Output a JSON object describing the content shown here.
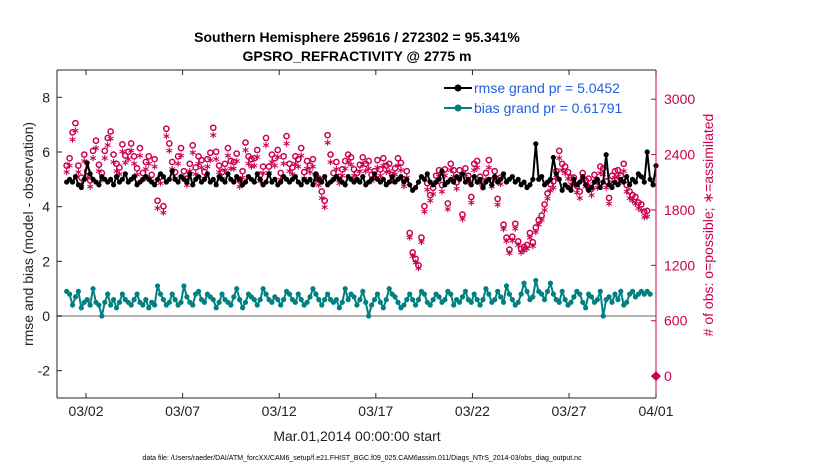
{
  "chart_data": {
    "type": "line",
    "title": "Southern Hemisphere 259616 / 272302 = 95.341%",
    "subtitle": "GPSRO_REFRACTIVITY @ 2775 m",
    "xlabel": "Mar.01,2014 00:00:00 start",
    "ylabel": "rmse and bias (model - observation)",
    "y2label": "# of obs: o=possible; ∗=assimilated",
    "footer": "data file: /Users/raeder/DAI/ATM_forcXX/CAM6_setup/f.e21.FHIST_BGC.f09_025.CAM6assim.011/Diags_NTrS_2014-03/obs_diag_output.nc",
    "xlim": [
      0.5,
      31.5
    ],
    "ylim": [
      -3,
      9
    ],
    "y2lim": [
      -237,
      3316
    ],
    "x_ticks": [
      {
        "label": "03/02",
        "x": 2
      },
      {
        "label": "03/07",
        "x": 7
      },
      {
        "label": "03/12",
        "x": 12
      },
      {
        "label": "03/17",
        "x": 17
      },
      {
        "label": "03/22",
        "x": 22
      },
      {
        "label": "03/27",
        "x": 27
      },
      {
        "label": "04/01",
        "x": 32
      }
    ],
    "y_ticks": [
      "-2",
      "0",
      "2",
      "4",
      "6",
      "8"
    ],
    "y2_ticks": [
      "0",
      "600",
      "1200",
      "1800",
      "2400",
      "3000"
    ],
    "legend_position": "top-right",
    "colors": {
      "rmse": "#000000",
      "bias": "#008080",
      "obs": "#cc0052",
      "zero_line": "#b3b3b3"
    },
    "series": [
      {
        "name": "rmse grand pr = 5.0452",
        "marker": "filled-circle",
        "values": [
          4.9,
          5.0,
          4.9,
          5.1,
          4.8,
          4.7,
          5.0,
          5.6,
          5.2,
          5.0,
          4.9,
          4.8,
          5.1,
          5.0,
          4.9,
          5.0,
          4.8,
          5.1,
          4.9,
          5.0,
          5.2,
          4.9,
          5.0,
          5.1,
          4.8,
          4.9,
          5.0,
          5.1,
          5.0,
          4.9,
          4.8,
          5.0,
          5.2,
          5.1,
          4.9,
          5.0,
          5.3,
          5.0,
          4.9,
          5.1,
          5.0,
          4.9,
          5.2,
          4.8,
          5.0,
          5.1,
          4.9,
          5.0,
          5.2,
          4.9,
          5.0,
          4.8,
          5.1,
          5.0,
          4.9,
          5.2,
          5.0,
          4.9,
          5.1,
          5.0,
          4.8,
          4.9,
          5.1,
          5.0,
          4.9,
          5.2,
          5.0,
          4.8,
          4.9,
          5.2,
          4.9,
          5.0,
          4.8,
          4.9,
          5.1,
          5.0,
          4.9,
          5.0,
          5.1,
          4.9,
          4.8,
          5.0,
          4.9,
          5.0,
          4.8,
          5.2,
          5.0,
          4.9,
          5.1,
          4.8,
          4.9,
          5.0,
          5.1,
          5.0,
          4.9,
          4.8,
          5.1,
          5.0,
          4.9,
          5.0,
          4.9,
          5.1,
          4.8,
          4.9,
          5.0,
          5.2,
          5.0,
          4.9,
          5.0,
          4.8,
          4.9,
          5.1,
          4.9,
          5.0,
          5.1,
          4.9,
          5.0,
          4.8,
          4.6,
          4.7,
          4.9,
          5.1,
          5.0,
          5.2,
          4.9,
          4.8,
          4.9,
          5.0,
          5.3,
          4.8,
          4.9,
          5.0,
          4.9,
          5.1,
          5.0,
          5.2,
          4.9,
          5.0,
          4.8,
          5.1,
          4.9,
          5.0,
          4.7,
          4.9,
          5.0,
          4.8,
          5.1,
          4.9,
          5.0,
          5.2,
          4.9,
          5.0,
          5.1,
          4.9,
          5.0,
          4.8,
          4.9,
          4.7,
          4.8,
          5.0,
          6.3,
          5.0,
          5.1,
          4.8,
          4.9,
          5.0,
          5.8,
          5.2,
          5.0,
          4.6,
          4.8,
          4.7,
          4.6,
          5.0,
          4.8,
          4.9,
          5.1,
          4.8,
          4.6,
          4.7,
          4.9,
          5.0,
          4.7,
          4.9,
          5.9,
          4.8,
          4.7,
          4.9,
          4.8,
          5.0,
          4.9,
          5.1,
          4.8,
          5.0,
          4.9,
          5.2,
          5.1,
          4.9,
          6.0,
          5.0,
          4.8,
          5.5
        ]
      },
      {
        "name": "bias grand pr = 0.61791",
        "marker": "filled-circle",
        "values": [
          0.9,
          0.8,
          0.4,
          0.7,
          0.9,
          0.3,
          0.5,
          0.6,
          0.4,
          1.0,
          0.5,
          0.4,
          0.0,
          0.5,
          0.8,
          0.4,
          0.6,
          0.3,
          0.5,
          0.8,
          0.6,
          0.5,
          0.4,
          0.6,
          0.8,
          0.5,
          0.4,
          0.6,
          0.3,
          0.5,
          0.4,
          1.1,
          0.8,
          0.6,
          0.4,
          0.5,
          0.8,
          0.6,
          0.4,
          0.5,
          1.1,
          0.7,
          0.5,
          0.4,
          0.8,
          0.9,
          0.6,
          0.5,
          0.8,
          0.7,
          0.6,
          0.3,
          0.5,
          0.8,
          0.6,
          0.5,
          0.4,
          0.7,
          1.0,
          0.6,
          0.3,
          0.5,
          0.8,
          0.7,
          0.6,
          0.4,
          0.6,
          1.0,
          0.8,
          0.6,
          0.5,
          0.7,
          0.6,
          0.4,
          0.6,
          0.9,
          0.8,
          0.6,
          0.5,
          0.8,
          0.6,
          0.4,
          0.5,
          0.7,
          1.0,
          0.8,
          0.6,
          0.4,
          0.6,
          0.8,
          0.6,
          0.5,
          0.6,
          0.3,
          0.5,
          1.0,
          0.6,
          0.8,
          0.7,
          0.4,
          0.6,
          0.9,
          0.5,
          0.0,
          0.4,
          0.6,
          0.8,
          0.5,
          0.3,
          0.6,
          1.0,
          0.8,
          0.7,
          0.5,
          0.3,
          0.4,
          0.6,
          0.8,
          0.6,
          0.4,
          0.6,
          0.9,
          0.8,
          0.5,
          0.4,
          0.6,
          0.8,
          0.7,
          0.5,
          0.6,
          0.9,
          0.8,
          0.4,
          0.6,
          0.5,
          0.7,
          0.9,
          0.6,
          0.5,
          0.8,
          0.6,
          0.4,
          0.6,
          1.0,
          0.8,
          0.5,
          0.6,
          0.9,
          0.7,
          0.5,
          1.1,
          0.8,
          0.6,
          0.4,
          0.5,
          0.8,
          1.2,
          0.9,
          0.6,
          0.7,
          1.3,
          0.9,
          0.8,
          0.6,
          0.9,
          1.2,
          0.8,
          0.6,
          0.5,
          0.9,
          0.6,
          0.4,
          0.5,
          0.7,
          0.9,
          0.8,
          0.5,
          0.3,
          0.8,
          0.7,
          0.5,
          0.6,
          0.9,
          0.0,
          0.6,
          0.7,
          0.5,
          0.8,
          0.6,
          0.9,
          0.4,
          0.5,
          0.8,
          0.9,
          0.7,
          0.8,
          0.9,
          0.8,
          0.9,
          0.8
        ]
      },
      {
        "name": "possible",
        "axis": "right",
        "marker": "open-circle",
        "values": [
          2280,
          2360,
          2640,
          2740,
          2280,
          2150,
          2400,
          2220,
          2120,
          2440,
          2550,
          2290,
          2200,
          2440,
          2580,
          2650,
          2400,
          2300,
          2260,
          2510,
          2390,
          2430,
          2520,
          2380,
          2250,
          2470,
          2200,
          2320,
          2380,
          2180,
          2350,
          1900,
          2160,
          1840,
          2680,
          2520,
          2320,
          2210,
          2380,
          2470,
          2220,
          2140,
          2300,
          2500,
          2260,
          2380,
          2340,
          2210,
          2350,
          2420,
          2690,
          2430,
          2280,
          2210,
          2300,
          2470,
          2330,
          2320,
          2410,
          2120,
          2220,
          2530,
          2380,
          2350,
          2360,
          2450,
          2180,
          2270,
          2580,
          2270,
          2400,
          2360,
          2450,
          2200,
          2380,
          2600,
          2300,
          2260,
          2380,
          2350,
          2470,
          2210,
          2330,
          2280,
          2350,
          2180,
          2140,
          2000,
          1900,
          2610,
          2400,
          2200,
          2320,
          2160,
          2240,
          2330,
          2400,
          2370,
          2240,
          2200,
          2290,
          2370,
          2300,
          2330,
          2180,
          2220,
          2340,
          2240,
          2360,
          2280,
          2300,
          2180,
          2250,
          2360,
          2310,
          2130,
          2220,
          1550,
          1340,
          1270,
          1200,
          1500,
          1840,
          2090,
          1960,
          2040,
          2170,
          2230,
          2070,
          2240,
          1870,
          2300,
          2230,
          2100,
          2230,
          1750,
          2250,
          2170,
          1940,
          2300,
          2330,
          2160,
          2110,
          2200,
          2340,
          2120,
          2220,
          1920,
          2150,
          1640,
          1500,
          1370,
          1510,
          1650,
          1460,
          1380,
          1400,
          1420,
          1550,
          1450,
          1610,
          1690,
          1740,
          1860,
          1980,
          2080,
          2110,
          2220,
          2440,
          2300,
          2270,
          2210,
          2150,
          2150,
          2060,
          2000,
          2200,
          2120,
          2140,
          2030,
          2180,
          2110,
          2270,
          2250,
          2110,
          1930,
          2170,
          2220,
          2230,
          2170,
          2300,
          2070,
          2000,
          1960,
          1940,
          1880,
          1860,
          1780,
          1790
        ]
      },
      {
        "name": "assimilated",
        "axis": "right",
        "marker": "asterisk",
        "values": [
          2190,
          2260,
          2540,
          2640,
          2190,
          2060,
          2310,
          2130,
          2030,
          2340,
          2450,
          2200,
          2110,
          2340,
          2480,
          2550,
          2300,
          2200,
          2170,
          2410,
          2290,
          2330,
          2420,
          2280,
          2160,
          2370,
          2110,
          2220,
          2280,
          2090,
          2250,
          1800,
          2070,
          1750,
          2580,
          2420,
          2220,
          2120,
          2280,
          2370,
          2130,
          2050,
          2200,
          2400,
          2170,
          2280,
          2240,
          2120,
          2250,
          2320,
          2590,
          2330,
          2190,
          2120,
          2210,
          2370,
          2230,
          2230,
          2310,
          2030,
          2130,
          2430,
          2280,
          2250,
          2260,
          2350,
          2090,
          2180,
          2480,
          2180,
          2300,
          2260,
          2350,
          2110,
          2280,
          2500,
          2200,
          2170,
          2280,
          2250,
          2370,
          2120,
          2230,
          2190,
          2250,
          2090,
          2050,
          1910,
          1810,
          2510,
          2300,
          2110,
          2220,
          2070,
          2150,
          2230,
          2300,
          2270,
          2150,
          2110,
          2200,
          2270,
          2200,
          2230,
          2090,
          2130,
          2240,
          2150,
          2260,
          2190,
          2200,
          2090,
          2160,
          2260,
          2210,
          2040,
          2130,
          1480,
          1280,
          1210,
          1150,
          1430,
          1760,
          2000,
          1880,
          1950,
          2080,
          2140,
          1980,
          2150,
          1790,
          2210,
          2140,
          2010,
          2140,
          1680,
          2160,
          2080,
          1860,
          2210,
          2240,
          2070,
          2020,
          2110,
          2240,
          2030,
          2130,
          1840,
          2060,
          1570,
          1440,
          1310,
          1450,
          1580,
          1400,
          1320,
          1340,
          1360,
          1480,
          1390,
          1540,
          1620,
          1670,
          1780,
          1900,
          1990,
          2020,
          2130,
          2340,
          2210,
          2180,
          2120,
          2060,
          2060,
          1970,
          1910,
          2110,
          2030,
          2050,
          1940,
          2090,
          2020,
          2180,
          2160,
          2020,
          1850,
          2080,
          2130,
          2140,
          2080,
          2200,
          1980,
          1910,
          1880,
          1850,
          1800,
          1780,
          1700,
          1710
        ]
      }
    ],
    "outlier_right": {
      "x": 31.5,
      "value": 0
    }
  }
}
